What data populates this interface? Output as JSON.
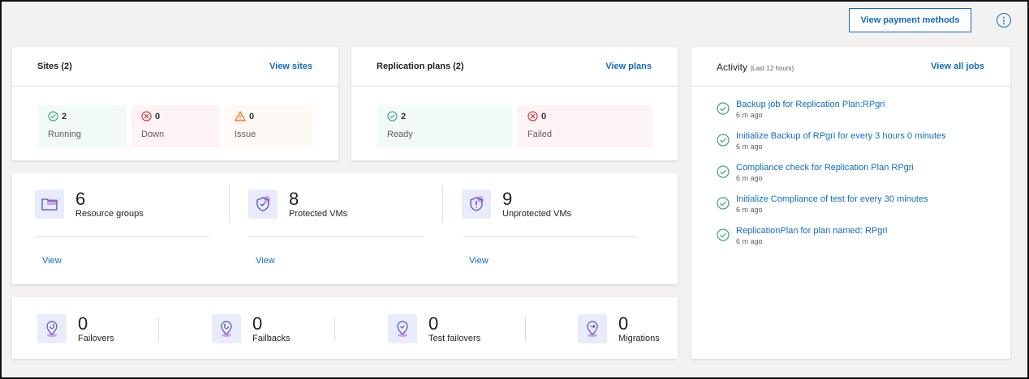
{
  "toolbar": {
    "payment_label": "View payment methods",
    "info_icon": "info-icon"
  },
  "sites": {
    "title": "Sites (2)",
    "link": "View sites",
    "tiles": [
      {
        "count": "2",
        "label": "Running"
      },
      {
        "count": "0",
        "label": "Down"
      },
      {
        "count": "0",
        "label": "Issue"
      }
    ]
  },
  "plans": {
    "title": "Replication plans (2)",
    "link": "View plans",
    "tiles": [
      {
        "count": "2",
        "label": "Ready"
      },
      {
        "count": "0",
        "label": "Failed"
      }
    ]
  },
  "resources": [
    {
      "count": "6",
      "label": "Resource groups",
      "link": "View"
    },
    {
      "count": "8",
      "label": "Protected VMs",
      "link": "View"
    },
    {
      "count": "9",
      "label": "Unprotected VMs",
      "link": "View"
    }
  ],
  "operations": [
    {
      "count": "0",
      "label": "Failovers"
    },
    {
      "count": "0",
      "label": "Failbacks"
    },
    {
      "count": "0",
      "label": "Test failovers"
    },
    {
      "count": "0",
      "label": "Migrations"
    }
  ],
  "activity": {
    "title": "Activity",
    "subtitle": "(Last 12 hours)",
    "link": "View all jobs",
    "items": [
      {
        "title": "Backup job for Replication Plan:RPgri",
        "time": "6 m ago"
      },
      {
        "title": "Initialize Backup of RPgri for every 3 hours 0 minutes",
        "time": "6 m ago"
      },
      {
        "title": "Compliance check for Replication Plan RPgri",
        "time": "6 m ago"
      },
      {
        "title": "Initialize Compliance of test for every 30 minutes",
        "time": "6 m ago"
      },
      {
        "title": "ReplicationPlan for plan named: RPgri",
        "time": "6 m ago"
      }
    ]
  },
  "colors": {
    "accent": "#0f6cbd",
    "success": "#3fa17a",
    "error": "#d13438",
    "warning": "#f7630c"
  }
}
